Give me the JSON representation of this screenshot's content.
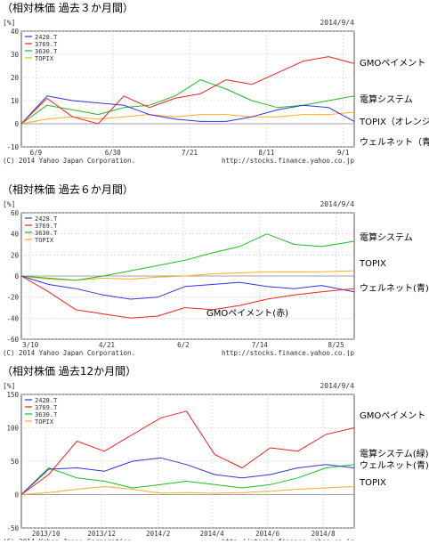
{
  "charts": [
    {
      "heading": "（相対株価 過去３か月間）",
      "date": "2014/9/4",
      "unit": "[%]",
      "copyright": "(C) 2014 Yahoo Japan Corporation.",
      "source": "http://stocks.finance.yahoo.co.jp",
      "legend": [
        "2428.T",
        "3769.T",
        "3630.T",
        "TOPIX"
      ],
      "side_labels": [
        {
          "text": "GMOペイメント",
          "color": "#000000"
        },
        {
          "text": "電算システム",
          "color": "#000000"
        },
        {
          "text": "TOPIX（オレンジ）",
          "color": "#000000"
        },
        {
          "text": "ウェルネット（青）",
          "color": "#000000"
        }
      ]
    },
    {
      "heading": "（相対株価 過去６か月間）",
      "date": "2014/9/4",
      "unit": "[%]",
      "copyright": "(C) 2014 Yahoo Japan Corporation.",
      "source": "http://stocks.finance.yahoo.co.jp",
      "legend": [
        "2428.T",
        "3769.T",
        "3630.T",
        "TOPIX"
      ],
      "inline_label": "GMOペイメント(赤)",
      "side_labels": [
        {
          "text": "電算システム",
          "color": "#000000"
        },
        {
          "text": "TOPIX",
          "color": "#000000"
        },
        {
          "text": "ウェルネット(青)",
          "color": "#000000"
        }
      ]
    },
    {
      "heading": "（相対株価 過去12か月間）",
      "date": "2014/9/4",
      "unit": "[%]",
      "copyright": "(C) 2014 Yahoo Japan Corporation.",
      "source": "http://stocks.finance.yahoo.co.jp",
      "legend": [
        "2428.T",
        "3769.T",
        "3630.T",
        "TOPIX"
      ],
      "side_labels": [
        {
          "text": "GMOペイメント",
          "color": "#000000"
        },
        {
          "text": "電算システム(緑)",
          "color": "#000000"
        },
        {
          "text": "ウェルネット(青)",
          "color": "#000000"
        },
        {
          "text": "TOPIX",
          "color": "#000000"
        }
      ]
    }
  ],
  "chart_data": [
    {
      "type": "line",
      "ylabel": "[%]",
      "ylim": [
        -10,
        40
      ],
      "yticks": [
        -10,
        0,
        10,
        20,
        30,
        40
      ],
      "x_range": [
        "2014-06-05",
        "2014-09-04"
      ],
      "xticks": [
        {
          "label": "6/9",
          "date": "2014-06-09"
        },
        {
          "label": "6/30",
          "date": "2014-06-30"
        },
        {
          "label": "7/21",
          "date": "2014-07-21"
        },
        {
          "label": "8/11",
          "date": "2014-08-11"
        },
        {
          "label": "9/1",
          "date": "2014-09-01"
        }
      ],
      "grid": true,
      "legend_position": "top-left",
      "series": [
        {
          "name": "2428.T",
          "color": "#3333dd",
          "x": [
            "2014-06-05",
            "2014-06-12",
            "2014-06-19",
            "2014-06-26",
            "2014-07-03",
            "2014-07-10",
            "2014-07-17",
            "2014-07-24",
            "2014-07-31",
            "2014-08-07",
            "2014-08-14",
            "2014-08-21",
            "2014-08-28",
            "2014-09-04"
          ],
          "y": [
            0,
            12,
            10,
            9,
            8,
            4,
            2,
            1,
            1,
            3,
            6,
            8,
            7,
            1
          ]
        },
        {
          "name": "3769.T",
          "color": "#ee2222",
          "x": [
            "2014-06-05",
            "2014-06-12",
            "2014-06-19",
            "2014-06-26",
            "2014-07-03",
            "2014-07-10",
            "2014-07-17",
            "2014-07-24",
            "2014-07-31",
            "2014-08-07",
            "2014-08-14",
            "2014-08-21",
            "2014-08-28",
            "2014-09-04"
          ],
          "y": [
            0,
            11,
            3,
            0,
            12,
            7,
            11,
            13,
            19,
            17,
            22,
            27,
            29,
            26
          ]
        },
        {
          "name": "3630.T",
          "color": "#22bb22",
          "x": [
            "2014-06-05",
            "2014-06-12",
            "2014-06-19",
            "2014-06-26",
            "2014-07-03",
            "2014-07-10",
            "2014-07-17",
            "2014-07-24",
            "2014-07-31",
            "2014-08-07",
            "2014-08-14",
            "2014-08-21",
            "2014-08-28",
            "2014-09-04"
          ],
          "y": [
            0,
            8,
            6,
            4,
            7,
            8,
            12,
            19,
            15,
            10,
            7,
            8,
            10,
            12
          ]
        },
        {
          "name": "TOPIX",
          "color": "#ffaa22",
          "x": [
            "2014-06-05",
            "2014-06-12",
            "2014-06-19",
            "2014-06-26",
            "2014-07-03",
            "2014-07-10",
            "2014-07-17",
            "2014-07-24",
            "2014-07-31",
            "2014-08-07",
            "2014-08-14",
            "2014-08-21",
            "2014-08-28",
            "2014-09-04"
          ],
          "y": [
            0,
            2,
            3,
            2,
            3,
            4,
            3,
            4,
            4,
            3,
            3,
            4,
            4,
            5
          ]
        }
      ]
    },
    {
      "type": "line",
      "ylabel": "[%]",
      "ylim": [
        -60,
        60
      ],
      "yticks": [
        -60,
        -40,
        -20,
        0,
        20,
        40,
        60
      ],
      "x_range": [
        "2014-03-05",
        "2014-09-04"
      ],
      "xticks": [
        {
          "label": "3/10",
          "date": "2014-03-10"
        },
        {
          "label": "4/21",
          "date": "2014-04-21"
        },
        {
          "label": "6/2",
          "date": "2014-06-02"
        },
        {
          "label": "7/14",
          "date": "2014-07-14"
        },
        {
          "label": "8/25",
          "date": "2014-08-25"
        }
      ],
      "grid": true,
      "legend_position": "top-left",
      "series": [
        {
          "name": "2428.T",
          "color": "#3333dd",
          "x": [
            "2014-03-05",
            "2014-03-20",
            "2014-04-04",
            "2014-04-19",
            "2014-05-04",
            "2014-05-19",
            "2014-06-03",
            "2014-06-18",
            "2014-07-03",
            "2014-07-18",
            "2014-08-02",
            "2014-08-17",
            "2014-09-04"
          ],
          "y": [
            0,
            -8,
            -12,
            -18,
            -22,
            -20,
            -10,
            -8,
            -6,
            -10,
            -12,
            -9,
            -15
          ]
        },
        {
          "name": "3769.T",
          "color": "#ee2222",
          "x": [
            "2014-03-05",
            "2014-03-20",
            "2014-04-04",
            "2014-04-19",
            "2014-05-04",
            "2014-05-19",
            "2014-06-03",
            "2014-06-18",
            "2014-07-03",
            "2014-07-18",
            "2014-08-02",
            "2014-08-17",
            "2014-09-04"
          ],
          "y": [
            0,
            -15,
            -32,
            -36,
            -40,
            -38,
            -30,
            -32,
            -28,
            -22,
            -18,
            -15,
            -12
          ]
        },
        {
          "name": "3630.T",
          "color": "#22bb22",
          "x": [
            "2014-03-05",
            "2014-03-20",
            "2014-04-04",
            "2014-04-19",
            "2014-05-04",
            "2014-05-19",
            "2014-06-03",
            "2014-06-18",
            "2014-07-03",
            "2014-07-18",
            "2014-08-02",
            "2014-08-17",
            "2014-09-04"
          ],
          "y": [
            0,
            -2,
            -4,
            0,
            5,
            10,
            15,
            22,
            28,
            40,
            30,
            28,
            33
          ]
        },
        {
          "name": "TOPIX",
          "color": "#ffaa22",
          "x": [
            "2014-03-05",
            "2014-03-20",
            "2014-04-04",
            "2014-04-19",
            "2014-05-04",
            "2014-05-19",
            "2014-06-03",
            "2014-06-18",
            "2014-07-03",
            "2014-07-18",
            "2014-08-02",
            "2014-08-17",
            "2014-09-04"
          ],
          "y": [
            0,
            -3,
            -4,
            -2,
            -3,
            -1,
            0,
            2,
            3,
            4,
            4,
            4,
            5
          ]
        }
      ]
    },
    {
      "type": "line",
      "ylabel": "[%]",
      "ylim": [
        -50,
        150
      ],
      "yticks": [
        -50,
        0,
        50,
        100,
        150
      ],
      "x_range": [
        "2013-09-04",
        "2014-09-04"
      ],
      "xticks": [
        {
          "label": "2013/10",
          "date": "2013-10-01"
        },
        {
          "label": "2013/12",
          "date": "2013-12-01"
        },
        {
          "label": "2014/2",
          "date": "2014-02-01"
        },
        {
          "label": "2014/4",
          "date": "2014-04-01"
        },
        {
          "label": "2014/6",
          "date": "2014-06-01"
        },
        {
          "label": "2014/8",
          "date": "2014-08-01"
        }
      ],
      "grid": true,
      "legend_position": "top-left",
      "series": [
        {
          "name": "2428.T",
          "color": "#3333dd",
          "x": [
            "2013-09-04",
            "2013-10-04",
            "2013-11-04",
            "2013-12-04",
            "2014-01-04",
            "2014-02-04",
            "2014-03-04",
            "2014-04-04",
            "2014-05-04",
            "2014-06-04",
            "2014-07-04",
            "2014-08-04",
            "2014-09-04"
          ],
          "y": [
            0,
            38,
            40,
            35,
            50,
            55,
            45,
            30,
            25,
            30,
            40,
            45,
            40
          ]
        },
        {
          "name": "3769.T",
          "color": "#ee2222",
          "x": [
            "2013-09-04",
            "2013-10-04",
            "2013-11-04",
            "2013-12-04",
            "2014-01-04",
            "2014-02-04",
            "2014-03-04",
            "2014-04-04",
            "2014-05-04",
            "2014-06-04",
            "2014-07-04",
            "2014-08-04",
            "2014-09-04"
          ],
          "y": [
            0,
            30,
            80,
            65,
            90,
            115,
            125,
            60,
            40,
            70,
            65,
            90,
            100
          ]
        },
        {
          "name": "3630.T",
          "color": "#22bb22",
          "x": [
            "2013-09-04",
            "2013-10-04",
            "2013-11-04",
            "2013-12-04",
            "2014-01-04",
            "2014-02-04",
            "2014-03-04",
            "2014-04-04",
            "2014-05-04",
            "2014-06-04",
            "2014-07-04",
            "2014-08-04",
            "2014-09-04"
          ],
          "y": [
            0,
            40,
            25,
            20,
            10,
            15,
            20,
            15,
            10,
            15,
            25,
            40,
            45
          ]
        },
        {
          "name": "TOPIX",
          "color": "#ffaa22",
          "x": [
            "2013-09-04",
            "2013-10-04",
            "2013-11-04",
            "2013-12-04",
            "2014-01-04",
            "2014-02-04",
            "2014-03-04",
            "2014-04-04",
            "2014-05-04",
            "2014-06-04",
            "2014-07-04",
            "2014-08-04",
            "2014-09-04"
          ],
          "y": [
            0,
            3,
            8,
            12,
            8,
            2,
            3,
            2,
            3,
            5,
            8,
            10,
            12
          ]
        }
      ]
    }
  ]
}
